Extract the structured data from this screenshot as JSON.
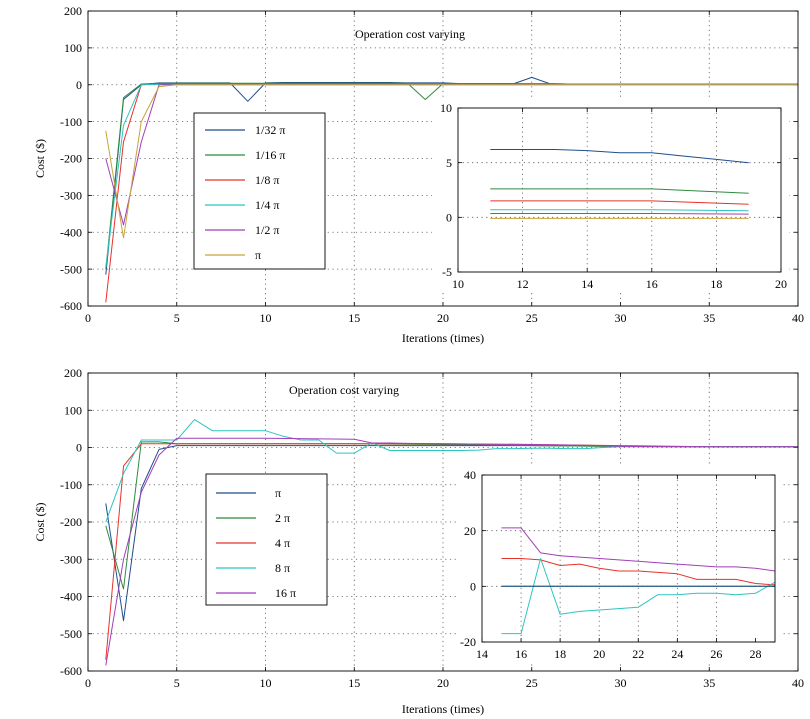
{
  "chart_data": [
    {
      "type": "line",
      "title": "Operation cost varying",
      "xlabel": "Iterations (times)",
      "ylabel": "Cost ($)",
      "xlim": [
        0,
        40
      ],
      "ylim": [
        -600,
        200
      ],
      "xticks": [
        0,
        5,
        10,
        15,
        20,
        25,
        30,
        35,
        40
      ],
      "yticks": [
        -600,
        -500,
        -400,
        -300,
        -200,
        -100,
        0,
        100,
        200
      ],
      "grid": true,
      "legend": "center-left",
      "series": [
        {
          "name": "1/32 π",
          "color": "#1f4e8c",
          "x": [
            1,
            2,
            3,
            4,
            5,
            6,
            7,
            8,
            9,
            10,
            11,
            12,
            13,
            14,
            15,
            16,
            17,
            18,
            19,
            20,
            21,
            22,
            23,
            24,
            25,
            26,
            27,
            28,
            29,
            30,
            31,
            32,
            33,
            34,
            35,
            36,
            37,
            38,
            39,
            40
          ],
          "y": [
            -515,
            -40,
            0,
            5,
            5,
            5,
            5,
            5,
            -45,
            5,
            6,
            6,
            6,
            6,
            6,
            6,
            6,
            5,
            5,
            5,
            3,
            3,
            3,
            3,
            20,
            3,
            2,
            2,
            2,
            2,
            2,
            2,
            2,
            2,
            2,
            2,
            2,
            2,
            2,
            2
          ]
        },
        {
          "name": "1/16 π",
          "color": "#2e8b3e",
          "x": [
            1,
            2,
            3,
            4,
            5,
            6,
            7,
            8,
            9,
            10,
            11,
            12,
            13,
            14,
            15,
            16,
            17,
            18,
            19,
            20,
            21,
            22,
            23,
            24,
            25,
            26,
            27,
            28,
            29,
            30,
            31,
            32,
            33,
            34,
            35,
            36,
            37,
            38,
            39,
            40
          ],
          "y": [
            -500,
            -35,
            2,
            4,
            4,
            4,
            4,
            4,
            4,
            4,
            4,
            4,
            4,
            4,
            4,
            4,
            4,
            4,
            -40,
            3,
            3,
            3,
            3,
            3,
            3,
            3,
            2,
            2,
            2,
            2,
            2,
            2,
            2,
            2,
            2,
            2,
            2,
            2,
            2,
            2
          ]
        },
        {
          "name": "1/8 π",
          "color": "#e8332a",
          "x": [
            1,
            2,
            3,
            4,
            5,
            10,
            15,
            20,
            25,
            30,
            35,
            40
          ],
          "y": [
            -590,
            -155,
            0,
            2,
            2,
            2,
            2,
            2,
            1,
            1,
            1,
            1
          ]
        },
        {
          "name": "1/4 π",
          "color": "#2ec4c0",
          "x": [
            1,
            2,
            3,
            4,
            5,
            10,
            15,
            20,
            25,
            30,
            35,
            40
          ],
          "y": [
            -495,
            -110,
            0,
            1,
            1,
            1,
            1,
            1,
            1,
            1,
            1,
            1
          ]
        },
        {
          "name": "1/2 π",
          "color": "#a13fb8",
          "x": [
            1,
            2,
            3,
            4,
            5,
            10,
            15,
            20,
            25,
            30,
            35,
            40
          ],
          "y": [
            -200,
            -380,
            -155,
            0,
            0,
            0,
            0,
            0,
            0,
            0,
            0,
            0
          ]
        },
        {
          "name": "π",
          "color": "#c9a23a",
          "x": [
            1,
            2,
            3,
            4,
            5,
            10,
            15,
            20,
            25,
            30,
            35,
            40
          ],
          "y": [
            -125,
            -415,
            -100,
            -5,
            0,
            0,
            0,
            0,
            0,
            0,
            0,
            0
          ]
        }
      ],
      "inset": {
        "xlim": [
          10,
          20
        ],
        "ylim": [
          -5,
          10
        ],
        "xticks": [
          10,
          12,
          14,
          16,
          18,
          20
        ],
        "yticks": [
          -5,
          0,
          5,
          10
        ],
        "grid": true,
        "series": [
          {
            "color": "#1f4e8c",
            "x": [
              11,
              12,
              13,
              14,
              15,
              16,
              17,
              18,
              19
            ],
            "y": [
              6.2,
              6.2,
              6.2,
              6.1,
              5.9,
              5.9,
              5.6,
              5.3,
              5.0
            ]
          },
          {
            "color": "#2e8b3e",
            "x": [
              11,
              16,
              19
            ],
            "y": [
              2.6,
              2.6,
              2.2
            ]
          },
          {
            "color": "#e8332a",
            "x": [
              11,
              16,
              19
            ],
            "y": [
              1.5,
              1.5,
              1.2
            ]
          },
          {
            "color": "#2ec4c0",
            "x": [
              11,
              16,
              19
            ],
            "y": [
              0.7,
              0.7,
              0.6
            ]
          },
          {
            "color": "#a13fb8",
            "x": [
              11,
              16,
              19
            ],
            "y": [
              0.35,
              0.35,
              0.3
            ]
          },
          {
            "color": "#c9a23a",
            "x": [
              11,
              19
            ],
            "y": [
              -0.1,
              -0.1
            ]
          }
        ]
      }
    },
    {
      "type": "line",
      "title": "Operation cost varying",
      "xlabel": "Iterations (times)",
      "ylabel": "Cost ($)",
      "xlim": [
        0,
        40
      ],
      "ylim": [
        -600,
        200
      ],
      "xticks": [
        0,
        5,
        10,
        15,
        20,
        25,
        30,
        35,
        40
      ],
      "yticks": [
        -600,
        -500,
        -400,
        -300,
        -200,
        -100,
        0,
        100,
        200
      ],
      "grid": true,
      "legend": "center-left",
      "series": [
        {
          "name": "π",
          "color": "#1f4e8c",
          "x": [
            1,
            2,
            3,
            4,
            5,
            10,
            15,
            20,
            25,
            30,
            35,
            40
          ],
          "y": [
            -150,
            -465,
            -110,
            -5,
            5,
            5,
            5,
            5,
            5,
            3,
            2,
            2
          ]
        },
        {
          "name": "2 π",
          "color": "#2e8b3e",
          "x": [
            1,
            2,
            3,
            4,
            5,
            10,
            15,
            20,
            25,
            30,
            35,
            40
          ],
          "y": [
            -210,
            -380,
            15,
            15,
            10,
            10,
            10,
            8,
            5,
            3,
            2,
            2
          ]
        },
        {
          "name": "4 π",
          "color": "#e8332a",
          "x": [
            1,
            2,
            3,
            4,
            5,
            10,
            15,
            20,
            25,
            30,
            35,
            40
          ],
          "y": [
            -570,
            -50,
            10,
            10,
            10,
            10,
            10,
            10,
            8,
            5,
            2,
            2
          ]
        },
        {
          "name": "8 π",
          "color": "#2ec4c0",
          "x": [
            1,
            2,
            3,
            4,
            5,
            6,
            7,
            8,
            9,
            10,
            11,
            12,
            13,
            14,
            15,
            16,
            17,
            18,
            19,
            20,
            21,
            22,
            23,
            24,
            25,
            26,
            27,
            28,
            29,
            30,
            35,
            40
          ],
          "y": [
            -200,
            -70,
            20,
            20,
            20,
            75,
            45,
            45,
            45,
            45,
            30,
            20,
            20,
            -15,
            -15,
            12,
            -8,
            -8,
            -8,
            -8,
            -8,
            -7,
            -3,
            -3,
            -2,
            -2,
            -3,
            -3,
            0,
            2,
            2,
            2
          ]
        },
        {
          "name": "16 π",
          "color": "#a13fb8",
          "x": [
            1,
            2,
            3,
            4,
            5,
            10,
            15,
            16,
            17,
            18,
            20,
            25,
            28,
            29,
            30,
            35,
            40
          ],
          "y": [
            -585,
            -300,
            -120,
            -20,
            25,
            25,
            22,
            12,
            12,
            11,
            10,
            8,
            6,
            5,
            3,
            2,
            2
          ]
        }
      ],
      "inset": {
        "xlim": [
          14,
          29
        ],
        "ylim": [
          -20,
          40
        ],
        "xticks": [
          14,
          16,
          18,
          20,
          22,
          24,
          26,
          28
        ],
        "yticks": [
          -20,
          0,
          20,
          40
        ],
        "grid": true,
        "series": [
          {
            "color": "#a13fb8",
            "x": [
              15,
              16,
              17,
              18,
              19,
              20,
              21,
              22,
              23,
              24,
              25,
              26,
              27,
              28,
              29
            ],
            "y": [
              21,
              21,
              12,
              11,
              10.5,
              10,
              9.5,
              9,
              8.5,
              8,
              7.5,
              7,
              7,
              6.5,
              5.5
            ]
          },
          {
            "color": "#e8332a",
            "x": [
              15,
              16,
              17,
              18,
              19,
              20,
              21,
              22,
              23,
              24,
              25,
              26,
              27,
              28,
              29
            ],
            "y": [
              10,
              10,
              9.5,
              7.5,
              8,
              6.5,
              5.5,
              5.5,
              5,
              4.5,
              2.5,
              2.5,
              2.5,
              1,
              0.5
            ]
          },
          {
            "color": "#2ec4c0",
            "x": [
              15,
              16,
              17,
              18,
              19,
              20,
              21,
              22,
              23,
              24,
              25,
              26,
              27,
              28,
              29
            ],
            "y": [
              -17,
              -17,
              10,
              -10,
              -9,
              -8.5,
              -8,
              -7.5,
              -3,
              -3,
              -2.5,
              -2.5,
              -3,
              -2.5,
              1.5
            ]
          },
          {
            "color": "#2e8b3e",
            "x": [
              15,
              29
            ],
            "y": [
              0,
              0
            ]
          },
          {
            "color": "#1f4e8c",
            "x": [
              15,
              29
            ],
            "y": [
              0,
              0
            ]
          }
        ]
      }
    }
  ]
}
